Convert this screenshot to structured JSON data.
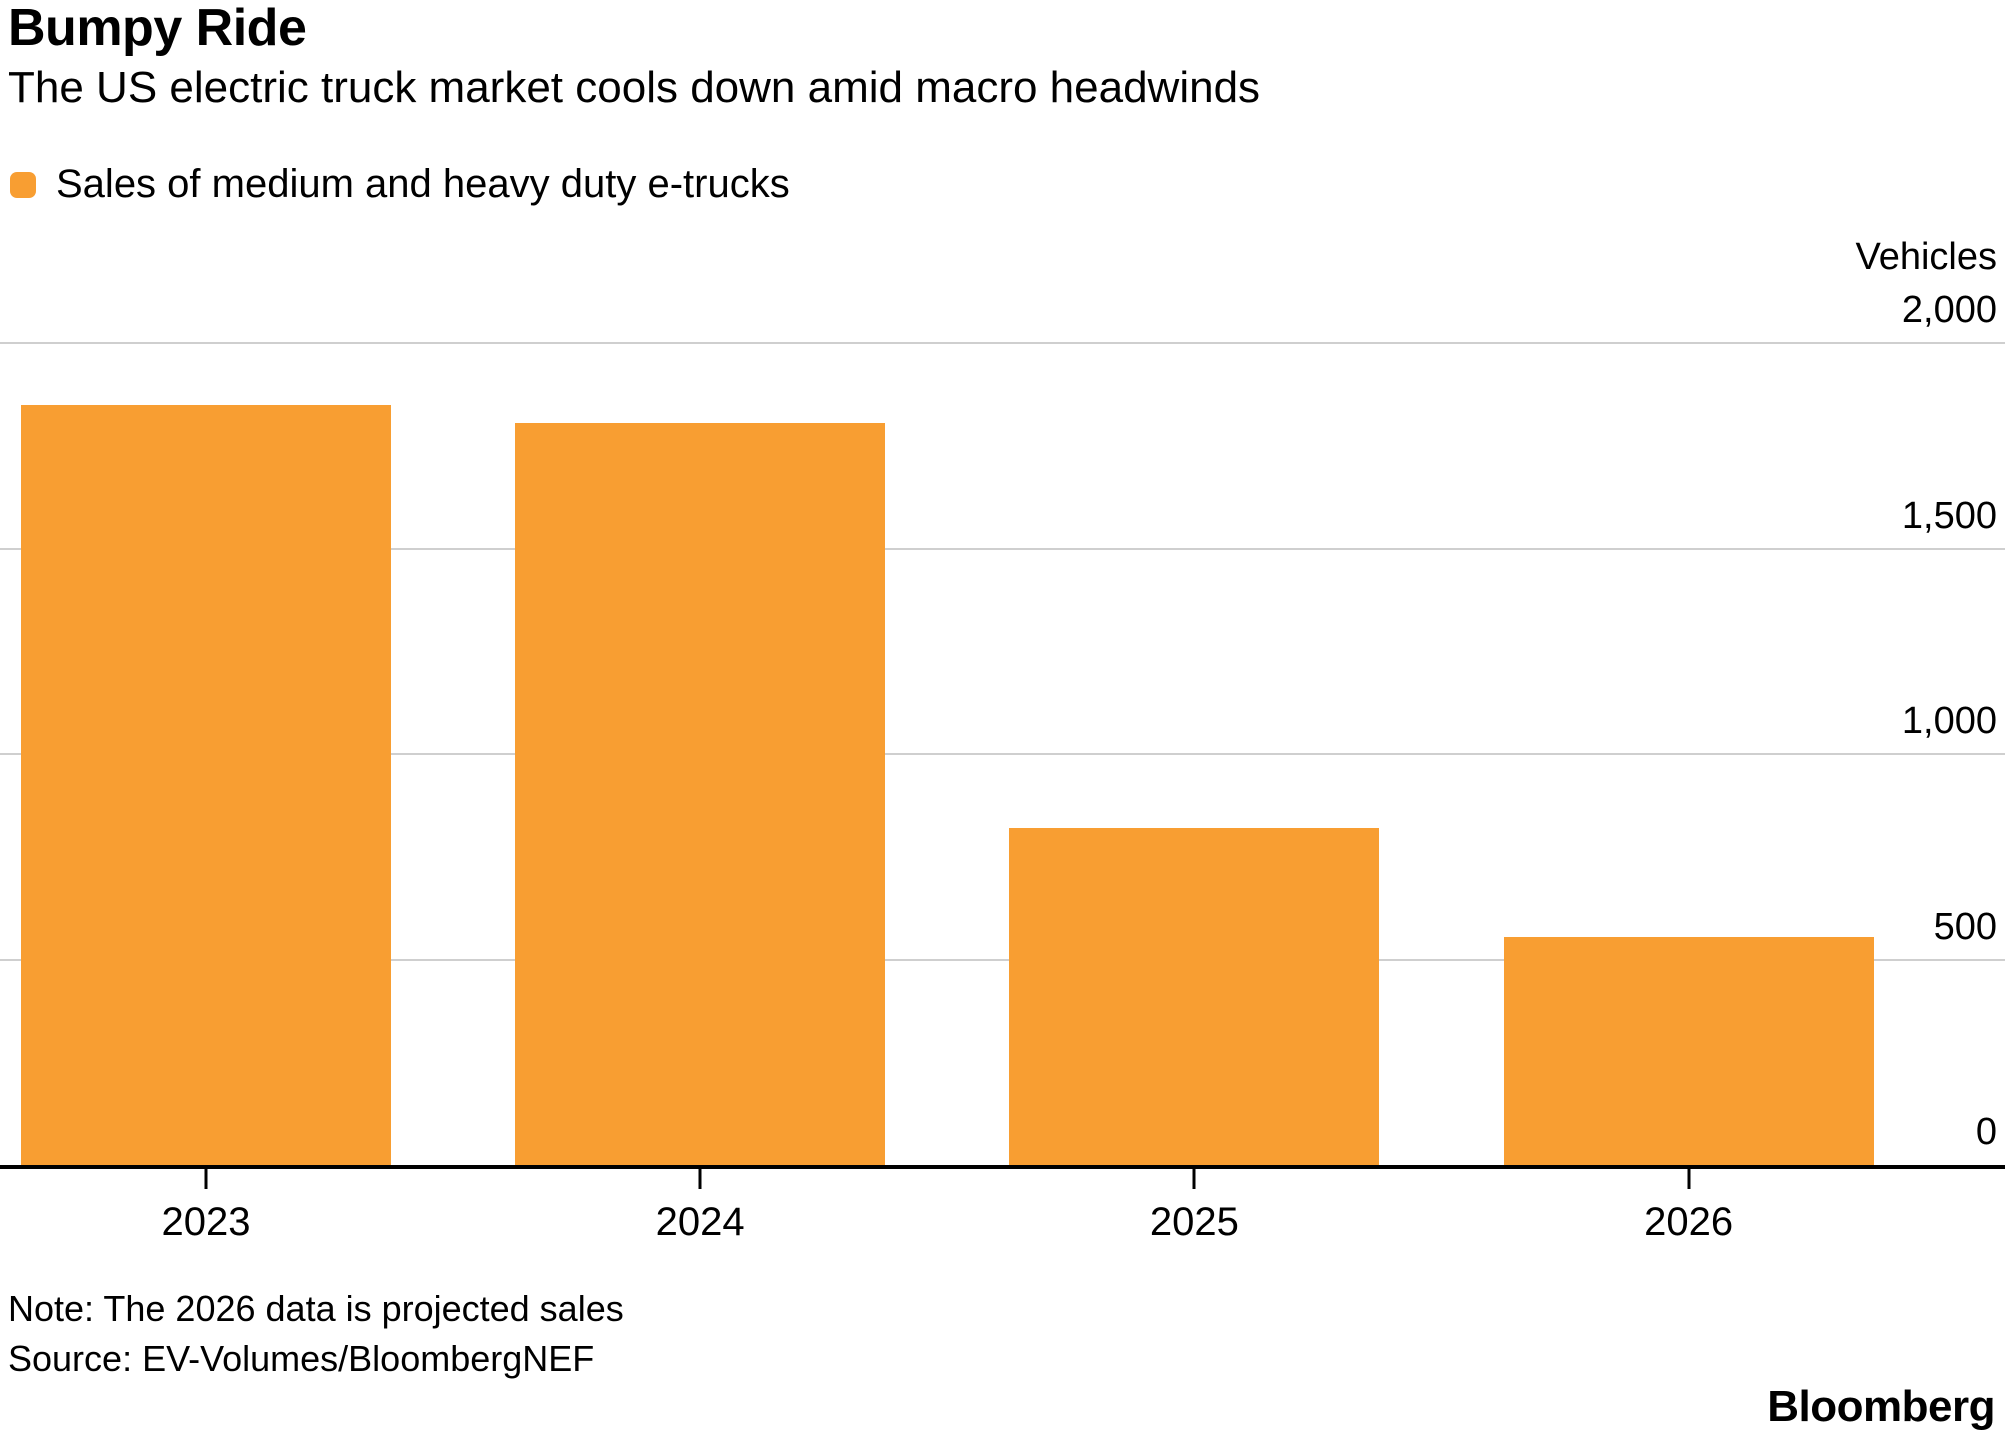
{
  "chart_data": {
    "type": "bar",
    "title": "Bumpy Ride",
    "subtitle": "The US electric truck market cools down amid macro headwinds",
    "legend": [
      {
        "label": "Sales of medium and heavy duty e-trucks",
        "color": "#F89E32"
      }
    ],
    "legend_position": "top-left",
    "unit_label": "Vehicles",
    "axis_side": "right",
    "categories": [
      "2023",
      "2024",
      "2025",
      "2026"
    ],
    "values": [
      1850,
      1805,
      820,
      555
    ],
    "ylim": [
      0,
      2000
    ],
    "yticks": [
      2000,
      1500,
      1000,
      500,
      0
    ],
    "ytick_labels": [
      "2,000",
      "1,500",
      "1,000",
      "500",
      "0"
    ],
    "grid": true,
    "bar_color": "#F89E32",
    "gridline_color": "#CFCFCF",
    "axis_color": "#000000",
    "note": "Note: The 2026 data is projected sales",
    "source": "Source: EV-Volumes/BloombergNEF",
    "brand": "Bloomberg"
  }
}
